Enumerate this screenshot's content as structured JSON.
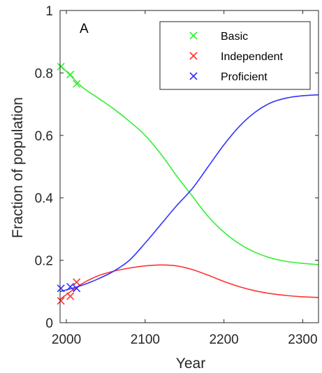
{
  "chart_data": {
    "type": "line",
    "panel_label": "A",
    "xlabel": "Year",
    "ylabel": "Fraction of population",
    "xlim": [
      1992,
      2320
    ],
    "ylim": [
      0,
      1
    ],
    "xticks": [
      2000,
      2100,
      2200,
      2300
    ],
    "yticks": [
      0,
      0.2,
      0.4,
      0.6,
      0.8,
      1
    ],
    "ytick_labels": [
      "0",
      "0.2",
      "0.4",
      "0.6",
      "0.8",
      "1"
    ],
    "legend_position": "top-right",
    "series": [
      {
        "name": "Basic",
        "color": "#33ee33",
        "line_x": [
          1992,
          2000,
          2020,
          2040,
          2060,
          2080,
          2100,
          2120,
          2140,
          2160,
          2180,
          2200,
          2220,
          2240,
          2260,
          2280,
          2300,
          2320
        ],
        "line_y": [
          0.825,
          0.805,
          0.755,
          0.72,
          0.685,
          0.645,
          0.6,
          0.54,
          0.47,
          0.405,
          0.34,
          0.29,
          0.252,
          0.225,
          0.207,
          0.196,
          0.19,
          0.186
        ],
        "points_x": [
          1993,
          2005,
          2013
        ],
        "points_y": [
          0.82,
          0.795,
          0.765
        ]
      },
      {
        "name": "Independent",
        "color": "#ff3333",
        "line_x": [
          1992,
          2000,
          2020,
          2040,
          2060,
          2080,
          2100,
          2120,
          2140,
          2160,
          2180,
          2200,
          2220,
          2240,
          2260,
          2280,
          2300,
          2320
        ],
        "line_y": [
          0.075,
          0.09,
          0.125,
          0.15,
          0.165,
          0.175,
          0.182,
          0.185,
          0.182,
          0.17,
          0.152,
          0.132,
          0.115,
          0.102,
          0.093,
          0.087,
          0.083,
          0.081
        ],
        "points_x": [
          1993,
          2005,
          2013
        ],
        "points_y": [
          0.07,
          0.085,
          0.13
        ]
      },
      {
        "name": "Proficient",
        "color": "#3333ff",
        "line_x": [
          1992,
          2000,
          2020,
          2040,
          2060,
          2080,
          2100,
          2120,
          2140,
          2160,
          2180,
          2200,
          2220,
          2240,
          2260,
          2280,
          2300,
          2320
        ],
        "line_y": [
          0.1,
          0.105,
          0.12,
          0.14,
          0.165,
          0.2,
          0.255,
          0.315,
          0.375,
          0.43,
          0.5,
          0.57,
          0.63,
          0.675,
          0.705,
          0.72,
          0.727,
          0.73
        ],
        "points_x": [
          1993,
          2005,
          2013
        ],
        "points_y": [
          0.11,
          0.115,
          0.11
        ]
      }
    ]
  }
}
